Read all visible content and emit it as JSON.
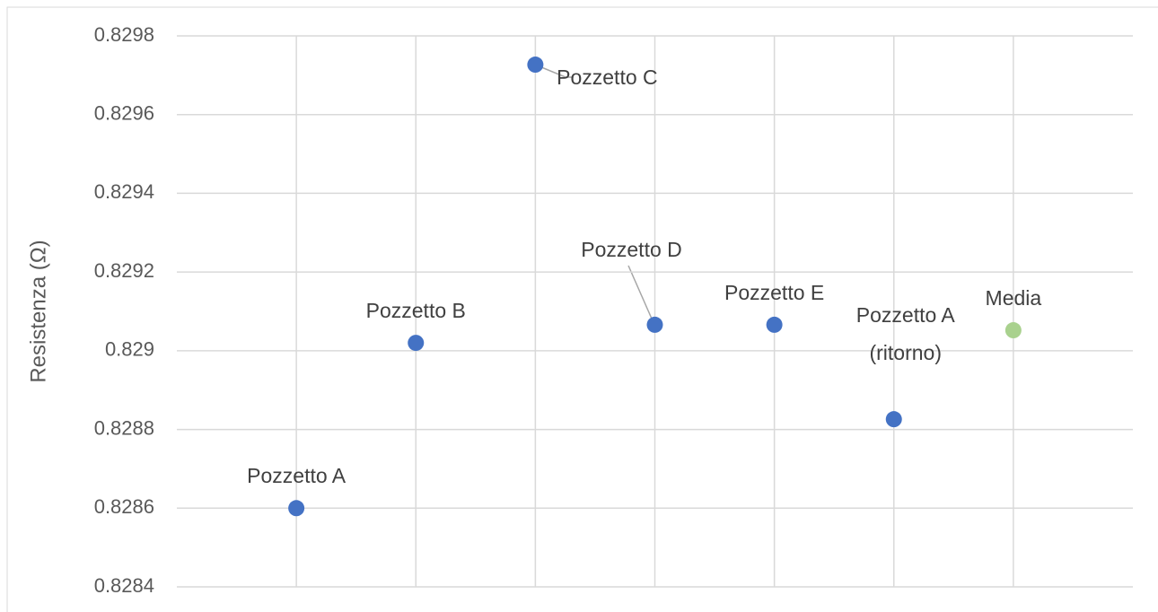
{
  "chart_data": {
    "type": "scatter",
    "y_label": "Resistenza (Ω)",
    "categories": [
      null,
      null,
      null,
      null,
      null,
      null,
      null
    ],
    "values": [
      0.8286,
      0.82902,
      0.829727,
      0.829066,
      0.829066,
      0.828826,
      0.829052
    ],
    "point_labels": [
      "Pozzetto A",
      "Pozzetto B",
      "Pozzetto C",
      "Pozzetto D",
      "Pozzetto E",
      "Pozzetto A (ritorno)",
      "Media"
    ],
    "colors": [
      "#4472c4",
      "#4472c4",
      "#4472c4",
      "#4472c4",
      "#4472c4",
      "#4472c4",
      "#a9d18e"
    ],
    "ylim": [
      0.8284,
      0.8298
    ],
    "yticks": [
      0.8284,
      0.8286,
      0.8288,
      0.829,
      0.8292,
      0.8294,
      0.8296,
      0.8298
    ],
    "grid": true
  }
}
